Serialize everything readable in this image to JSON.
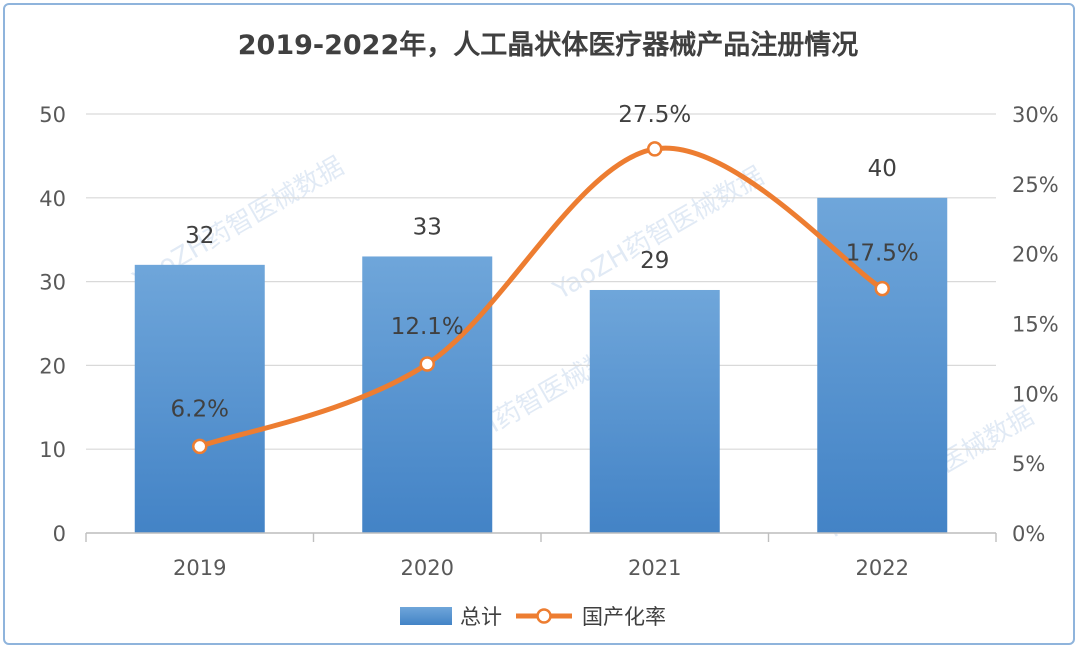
{
  "chart_data": {
    "type": "bar+line",
    "title": "2019-2022年，人工晶状体医疗器械产品注册情况",
    "categories": [
      "2019",
      "2020",
      "2021",
      "2022"
    ],
    "bar_series": {
      "name": "总计",
      "values": [
        32,
        33,
        29,
        40
      ],
      "labels": [
        "32",
        "33",
        "29",
        "40"
      ],
      "color": "#5b9bd5"
    },
    "line_series": {
      "name": "国产化率",
      "values": [
        6.2,
        12.1,
        27.5,
        17.5
      ],
      "labels": [
        "6.2%",
        "12.1%",
        "27.5%",
        "17.5%"
      ],
      "color": "#ed7d31"
    },
    "y_left": {
      "min": 0,
      "max": 50,
      "ticks": [
        "0",
        "10",
        "20",
        "30",
        "40",
        "50"
      ]
    },
    "y_right": {
      "min": 0,
      "max": 30,
      "ticks": [
        "0%",
        "5%",
        "10%",
        "15%",
        "20%",
        "25%",
        "30%"
      ]
    },
    "grid": true,
    "legend_position": "bottom"
  },
  "watermark": "YaoZH药智医械数据"
}
